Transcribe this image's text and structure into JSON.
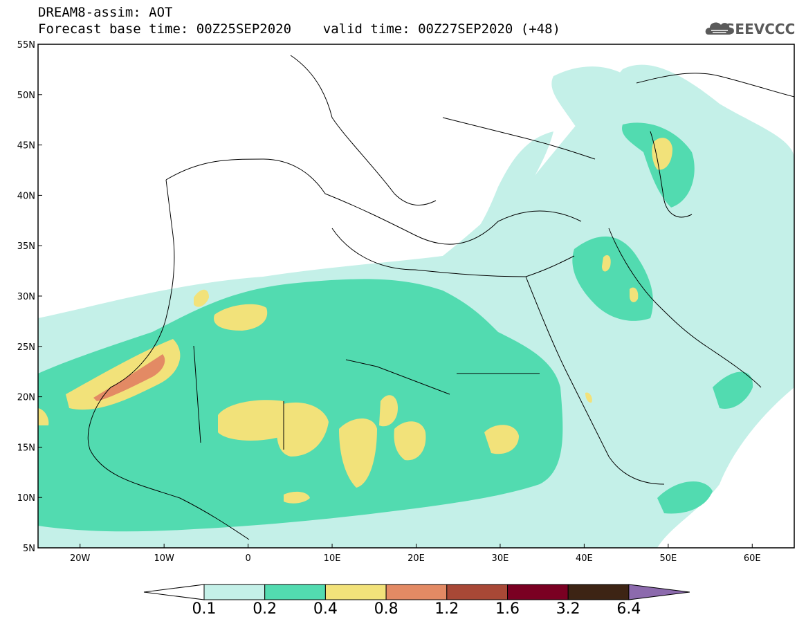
{
  "title": {
    "line1": "DREAM8-assim: AOT",
    "line2": "Forecast base time: 00Z25SEP2020    valid time: 00Z27SEP2020 (+48)"
  },
  "logo": {
    "text": "SEEVCCC",
    "icon": "cloud-icon"
  },
  "map": {
    "lon_range": [
      -25,
      65
    ],
    "lat_range": [
      5,
      55
    ],
    "x_ticks": [
      "20W",
      "10W",
      "0",
      "10E",
      "20E",
      "30E",
      "40E",
      "50E",
      "60E"
    ],
    "y_ticks": [
      "55N",
      "50N",
      "45N",
      "40N",
      "35N",
      "30N",
      "25N",
      "20N",
      "15N",
      "10N",
      "5N"
    ]
  },
  "colorbar": {
    "labels": [
      "0.1",
      "0.2",
      "0.4",
      "0.8",
      "1.2",
      "1.6",
      "3.2",
      "6.4"
    ],
    "colors": [
      "#c4f0e8",
      "#52dbb0",
      "#f2e27a",
      "#e38a64",
      "#a84836",
      "#7a0022",
      "#3d2414",
      "#8c6aad"
    ]
  }
}
